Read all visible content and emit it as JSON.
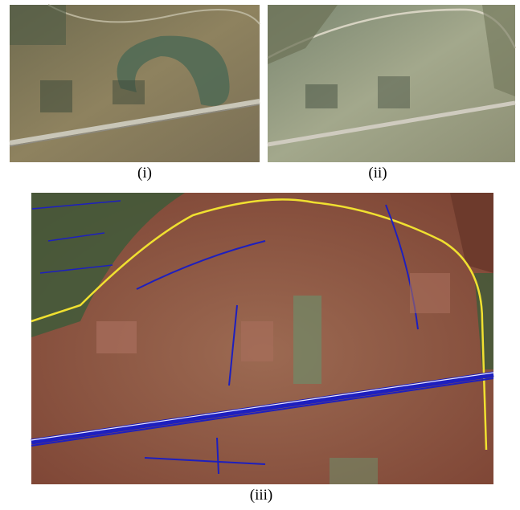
{
  "panels": [
    {
      "caption": "(i)"
    },
    {
      "caption": "(ii)"
    },
    {
      "caption": "(iii)"
    }
  ]
}
